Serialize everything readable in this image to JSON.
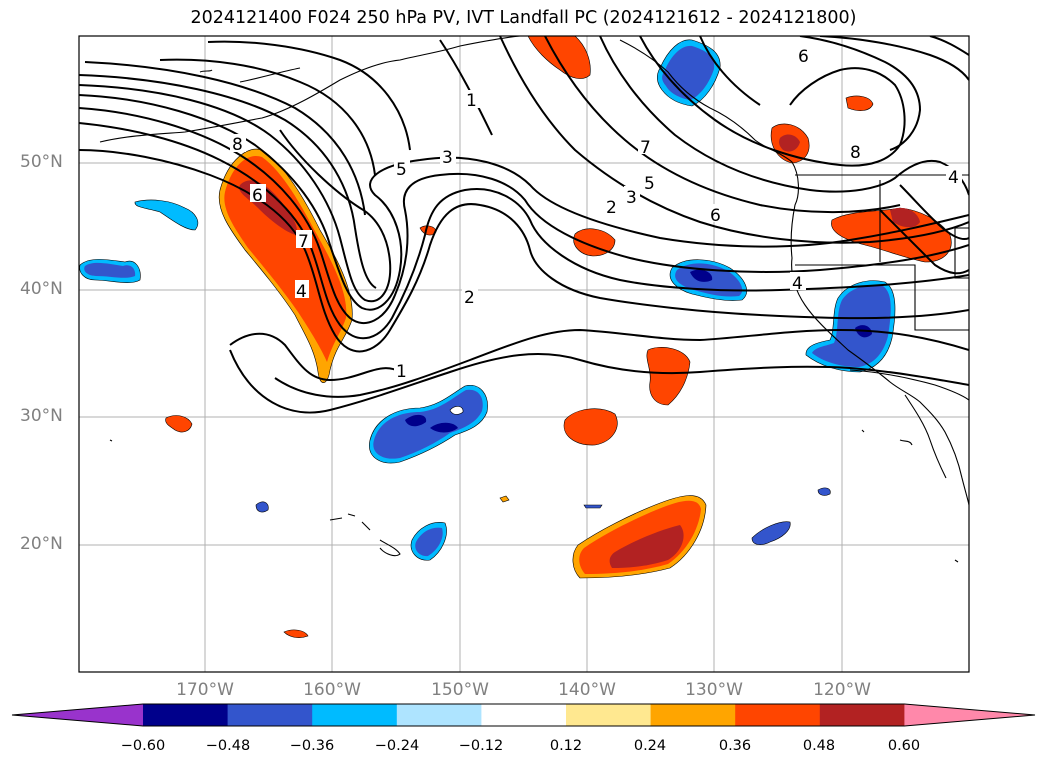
{
  "title": "2024121400 F024 250 hPa PV, IVT Landfall PC (2024121612 - 2024121800)",
  "lat_labels": [
    "50°N",
    "40°N",
    "30°N",
    "20°N"
  ],
  "lon_labels": [
    "170°W",
    "160°W",
    "150°W",
    "140°W",
    "130°W",
    "120°W"
  ],
  "colorbar": {
    "ticks": [
      "−0.60",
      "−0.48",
      "−0.36",
      "−0.24",
      "−0.12",
      "0.12",
      "0.24",
      "0.36",
      "0.48",
      "0.60"
    ],
    "colors": [
      "#9933cc",
      "#00008b",
      "#3355cc",
      "#00bbff",
      "#aee4ff",
      "#ffffff",
      "#ffe890",
      "#ffa500",
      "#ff4500",
      "#b22222",
      "#ff88aa"
    ]
  },
  "contour_labels": [
    "1",
    "2",
    "2",
    "3",
    "3",
    "4",
    "4",
    "4",
    "5",
    "5",
    "6",
    "6",
    "6",
    "7",
    "7",
    "8",
    "8",
    "1"
  ]
}
